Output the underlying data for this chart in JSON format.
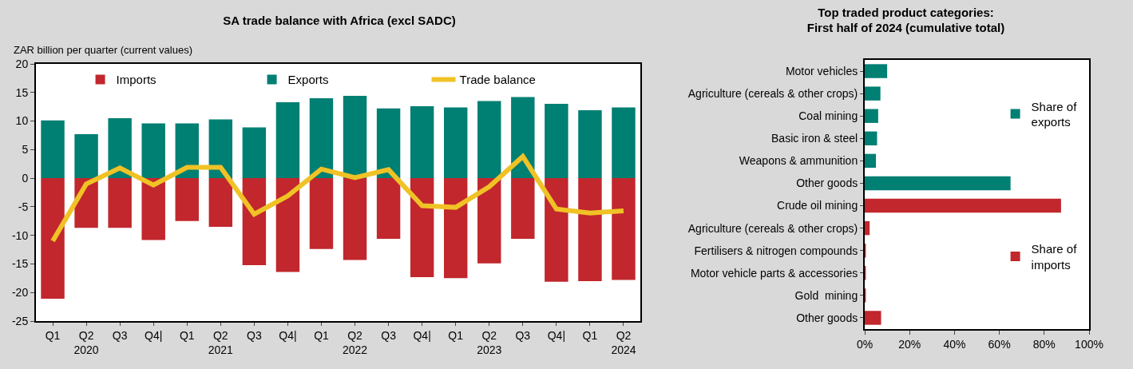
{
  "chart_data": [
    {
      "type": "bar",
      "title": "SA trade balance with Africa (excl SADC)",
      "ylabel": "ZAR billion per quarter (current values)",
      "categories": [
        "Q1",
        "Q2\n2020",
        "Q3",
        "Q4|",
        "Q1",
        "Q2\n2021",
        "Q3",
        "Q4|",
        "Q1",
        "Q2\n2022",
        "Q3",
        "Q4|",
        "Q1",
        "Q2\n2023",
        "Q3",
        "Q4|",
        "Q1",
        "Q2\n2024"
      ],
      "stacked": true,
      "ylim": [
        -25,
        20
      ],
      "yticks": [
        -25,
        -20,
        -15,
        -10,
        -5,
        0,
        5,
        10,
        15,
        20
      ],
      "grid": false,
      "legend": "top",
      "series": [
        {
          "name": "Imports",
          "color": "#c1272d",
          "values": [
            -21.1,
            -8.7,
            -8.7,
            -10.8,
            -7.5,
            -8.5,
            -15.2,
            -16.4,
            -12.4,
            -14.3,
            -10.6,
            -17.3,
            -17.5,
            -14.9,
            -10.6,
            -18.1,
            -18.0,
            -17.8
          ]
        },
        {
          "name": "Exports",
          "color": "#007f73",
          "values": [
            10.1,
            7.7,
            10.5,
            9.6,
            9.6,
            10.3,
            8.9,
            13.3,
            14.0,
            14.4,
            12.2,
            12.6,
            12.4,
            13.5,
            14.2,
            13.0,
            11.9,
            12.4
          ]
        },
        {
          "name": "Trade balance",
          "type": "line",
          "color": "#f0c225",
          "values": [
            -11.0,
            -1.0,
            1.8,
            -1.2,
            1.9,
            1.9,
            -6.3,
            -3.1,
            1.6,
            0.1,
            1.5,
            -4.8,
            -5.1,
            -1.5,
            3.8,
            -5.4,
            -6.1,
            -5.7
          ]
        }
      ]
    },
    {
      "type": "bar",
      "title": "Top traded product categories:\nFirst half of 2024 (cumulative total)",
      "orientation": "horizontal",
      "stacked": true,
      "categories": [
        "Motor vehicles",
        "Agriculture (cereals & other crops)",
        "Coal mining",
        "Basic iron & steel",
        "Weapons & ammunition",
        "Other goods",
        "Crude oil mining",
        "Agriculture (cereals & other crops)",
        "Fertilisers & nitrogen compounds",
        "Motor vehicle parts & accessories",
        "Gold  mining",
        "Other goods"
      ],
      "xlim": [
        0,
        100
      ],
      "xticks": [
        {
          "value": 0,
          "label": "0%"
        },
        {
          "value": 20,
          "label": "20%"
        },
        {
          "value": 40,
          "label": "40%"
        },
        {
          "value": 60,
          "label": "60%"
        },
        {
          "value": 80,
          "label": "80%"
        },
        {
          "value": 100,
          "label": "100%"
        }
      ],
      "grid": false,
      "legend": "right",
      "series": [
        {
          "name": "Share of\nexports",
          "color": "#007f73",
          "values": [
            10,
            7,
            6,
            5.5,
            5,
            65,
            null,
            null,
            null,
            null,
            null,
            null
          ]
        },
        {
          "name": "Share of\nimports",
          "color": "#c1272d",
          "values": [
            null,
            null,
            null,
            null,
            null,
            null,
            87.5,
            2.2,
            0.5,
            0.5,
            0.5,
            7.3
          ]
        }
      ]
    }
  ]
}
